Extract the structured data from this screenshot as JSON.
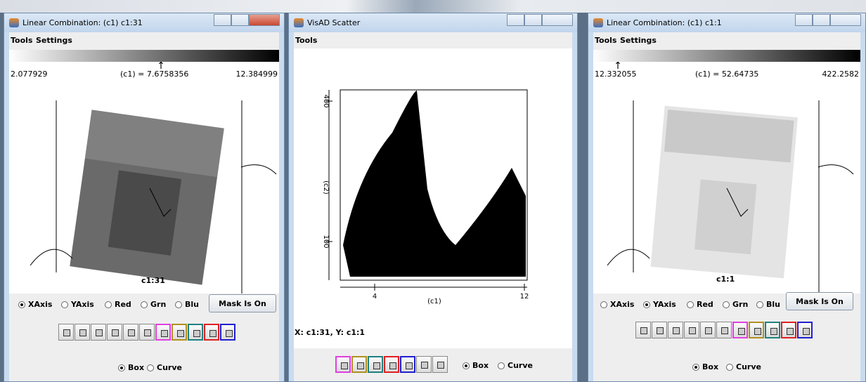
{
  "windows": [
    {
      "title": "Linear Combination: (c1)  c1:31",
      "menu": [
        "Tools",
        "Settings"
      ],
      "range_min": "2.077929",
      "readout": "(c1) = 7.6758356",
      "range_max": "12.384999",
      "image_label": "c1:31",
      "axis_options": [
        "XAxis",
        "YAxis",
        "Red",
        "Grn",
        "Blu"
      ],
      "mask_button": "Mask Is On",
      "shape_options": [
        "Box",
        "Curve"
      ]
    },
    {
      "title": "VisAD Scatter",
      "menu": [
        "Tools"
      ],
      "y_ticks": [
        "400",
        "100"
      ],
      "y_label": "(c2)",
      "x_ticks": [
        "4",
        "12"
      ],
      "x_label": "(c1)",
      "status": "X: c1:31,  Y: c1:1",
      "shape_options": [
        "Box",
        "Curve"
      ]
    },
    {
      "title": "Linear Combination: (c1)  c1:1",
      "menu": [
        "Tools",
        "Settings"
      ],
      "range_min": "12.332055",
      "readout": "(c1) = 52.64735",
      "range_max": "422.2582",
      "image_label": "c1:1",
      "axis_options": [
        "XAxis",
        "YAxis",
        "Red",
        "Grn",
        "Blu"
      ],
      "mask_button": "Mask Is On",
      "shape_options": [
        "Box",
        "Curve"
      ]
    }
  ]
}
